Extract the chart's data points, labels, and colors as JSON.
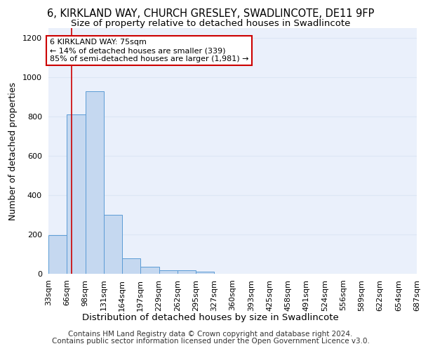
{
  "title_line1": "6, KIRKLAND WAY, CHURCH GRESLEY, SWADLINCOTE, DE11 9FP",
  "title_line2": "Size of property relative to detached houses in Swadlincote",
  "xlabel": "Distribution of detached houses by size in Swadlincote",
  "ylabel": "Number of detached properties",
  "footer_line1": "Contains HM Land Registry data © Crown copyright and database right 2024.",
  "footer_line2": "Contains public sector information licensed under the Open Government Licence v3.0.",
  "bin_edges": [
    33,
    66,
    99,
    132,
    165,
    198,
    231,
    264,
    297,
    330,
    363,
    396,
    429,
    462,
    495,
    528,
    561,
    594,
    627,
    660,
    693
  ],
  "bin_labels": [
    "33sqm",
    "66sqm",
    "98sqm",
    "131sqm",
    "164sqm",
    "197sqm",
    "229sqm",
    "262sqm",
    "295sqm",
    "327sqm",
    "360sqm",
    "393sqm",
    "425sqm",
    "458sqm",
    "491sqm",
    "524sqm",
    "556sqm",
    "589sqm",
    "622sqm",
    "654sqm",
    "687sqm"
  ],
  "bar_heights": [
    195,
    810,
    930,
    300,
    80,
    35,
    18,
    18,
    12,
    0,
    0,
    0,
    0,
    0,
    0,
    0,
    0,
    0,
    0,
    0
  ],
  "bar_color": "#c5d8f0",
  "bar_edge_color": "#5b9bd5",
  "vline_x": 75,
  "vline_color": "#cc0000",
  "annotation_text": "6 KIRKLAND WAY: 75sqm\n← 14% of detached houses are smaller (339)\n85% of semi-detached houses are larger (1,981) →",
  "annotation_box_color": "white",
  "annotation_box_edge_color": "#cc0000",
  "ylim": [
    0,
    1250
  ],
  "yticks": [
    0,
    200,
    400,
    600,
    800,
    1000,
    1200
  ],
  "grid_color": "#dce6f5",
  "bg_color": "#eaf0fb",
  "title_fontsize": 10.5,
  "subtitle_fontsize": 9.5,
  "ylabel_fontsize": 9,
  "xlabel_fontsize": 9.5,
  "tick_fontsize": 8,
  "ann_fontsize": 8,
  "footer_fontsize": 7.5
}
